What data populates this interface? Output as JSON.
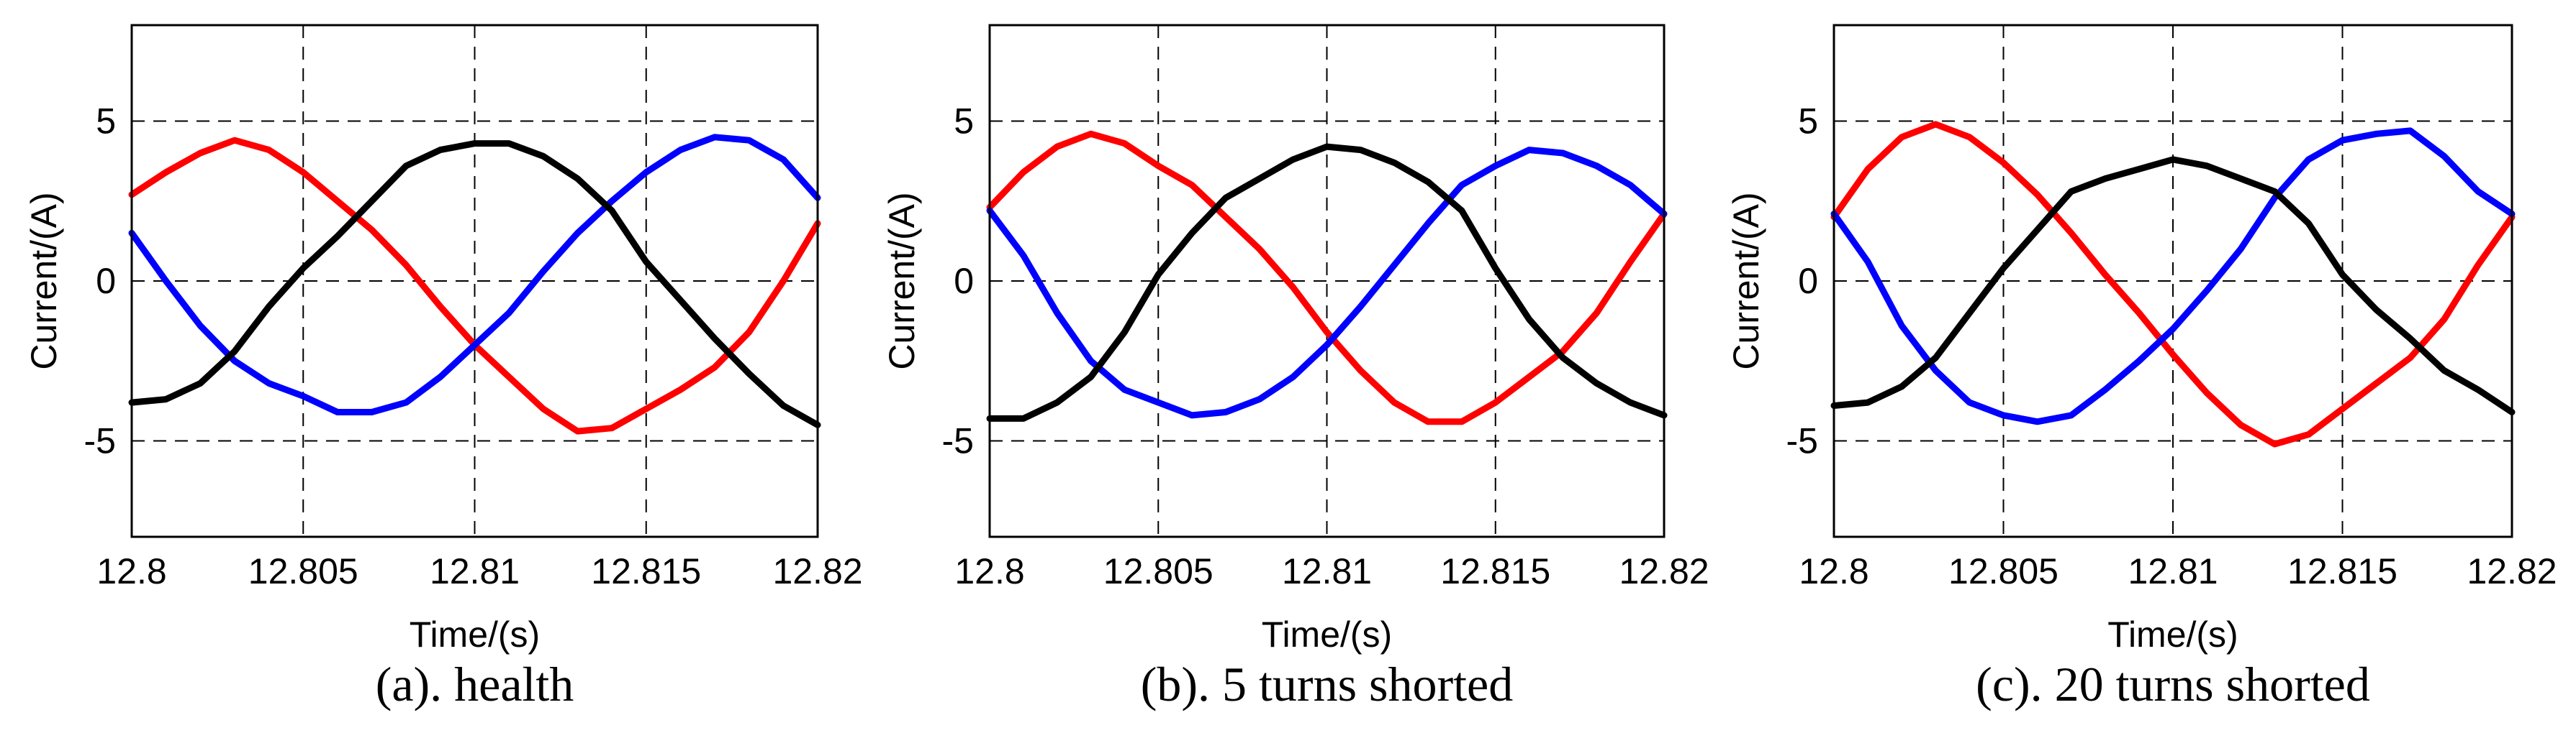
{
  "chart_data": [
    {
      "type": "line",
      "caption": "(a). health",
      "xlabel": "Time/(s)",
      "ylabel": "Current/(A)",
      "xlim": [
        12.8,
        12.82
      ],
      "ylim": [
        -8,
        8
      ],
      "xticks": [
        12.8,
        12.805,
        12.81,
        12.815,
        12.82
      ],
      "xtick_labels": [
        "12.8",
        "12.805",
        "12.81",
        "12.815",
        "12.82"
      ],
      "yticks": [
        -5,
        0,
        5
      ],
      "ytick_labels": [
        "-5",
        "0",
        "5"
      ],
      "grid": true,
      "series": [
        {
          "color": "#ff0000",
          "points": [
            [
              12.8,
              2.7
            ],
            [
              12.801,
              3.4
            ],
            [
              12.802,
              4.0
            ],
            [
              12.803,
              4.4
            ],
            [
              12.804,
              4.1
            ],
            [
              12.805,
              3.4
            ],
            [
              12.806,
              2.5
            ],
            [
              12.807,
              1.6
            ],
            [
              12.808,
              0.5
            ],
            [
              12.809,
              -0.8
            ],
            [
              12.81,
              -2.0
            ],
            [
              12.811,
              -3.0
            ],
            [
              12.812,
              -4.0
            ],
            [
              12.813,
              -4.7
            ],
            [
              12.814,
              -4.6
            ],
            [
              12.815,
              -4.0
            ],
            [
              12.816,
              -3.4
            ],
            [
              12.817,
              -2.7
            ],
            [
              12.818,
              -1.6
            ],
            [
              12.819,
              0.0
            ],
            [
              12.82,
              1.8
            ]
          ]
        },
        {
          "color": "#0000ff",
          "points": [
            [
              12.8,
              1.5
            ],
            [
              12.801,
              0.0
            ],
            [
              12.802,
              -1.4
            ],
            [
              12.803,
              -2.5
            ],
            [
              12.804,
              -3.2
            ],
            [
              12.805,
              -3.6
            ],
            [
              12.806,
              -4.1
            ],
            [
              12.807,
              -4.1
            ],
            [
              12.808,
              -3.8
            ],
            [
              12.809,
              -3.0
            ],
            [
              12.81,
              -2.0
            ],
            [
              12.811,
              -1.0
            ],
            [
              12.812,
              0.3
            ],
            [
              12.813,
              1.5
            ],
            [
              12.814,
              2.5
            ],
            [
              12.815,
              3.4
            ],
            [
              12.816,
              4.1
            ],
            [
              12.817,
              4.5
            ],
            [
              12.818,
              4.4
            ],
            [
              12.819,
              3.8
            ],
            [
              12.82,
              2.6
            ]
          ]
        },
        {
          "color": "#000000",
          "points": [
            [
              12.8,
              -3.8
            ],
            [
              12.801,
              -3.7
            ],
            [
              12.802,
              -3.2
            ],
            [
              12.803,
              -2.2
            ],
            [
              12.804,
              -0.8
            ],
            [
              12.805,
              0.4
            ],
            [
              12.806,
              1.4
            ],
            [
              12.807,
              2.5
            ],
            [
              12.808,
              3.6
            ],
            [
              12.809,
              4.1
            ],
            [
              12.81,
              4.3
            ],
            [
              12.811,
              4.3
            ],
            [
              12.812,
              3.9
            ],
            [
              12.813,
              3.2
            ],
            [
              12.814,
              2.2
            ],
            [
              12.815,
              0.6
            ],
            [
              12.816,
              -0.6
            ],
            [
              12.817,
              -1.8
            ],
            [
              12.818,
              -2.9
            ],
            [
              12.819,
              -3.9
            ],
            [
              12.82,
              -4.5
            ]
          ]
        }
      ]
    },
    {
      "type": "line",
      "caption": "(b). 5 turns shorted",
      "xlabel": "Time/(s)",
      "ylabel": "Current/(A)",
      "xlim": [
        12.8,
        12.82
      ],
      "ylim": [
        -8,
        8
      ],
      "xticks": [
        12.8,
        12.805,
        12.81,
        12.815,
        12.82
      ],
      "xtick_labels": [
        "12.8",
        "12.805",
        "12.81",
        "12.815",
        "12.82"
      ],
      "yticks": [
        -5,
        0,
        5
      ],
      "ytick_labels": [
        "-5",
        "0",
        "5"
      ],
      "grid": true,
      "series": [
        {
          "color": "#ff0000",
          "points": [
            [
              12.8,
              2.3
            ],
            [
              12.801,
              3.4
            ],
            [
              12.802,
              4.2
            ],
            [
              12.803,
              4.6
            ],
            [
              12.804,
              4.3
            ],
            [
              12.805,
              3.6
            ],
            [
              12.806,
              3.0
            ],
            [
              12.807,
              2.0
            ],
            [
              12.808,
              1.0
            ],
            [
              12.809,
              -0.2
            ],
            [
              12.81,
              -1.6
            ],
            [
              12.811,
              -2.8
            ],
            [
              12.812,
              -3.8
            ],
            [
              12.813,
              -4.4
            ],
            [
              12.814,
              -4.4
            ],
            [
              12.815,
              -3.8
            ],
            [
              12.816,
              -3.0
            ],
            [
              12.817,
              -2.2
            ],
            [
              12.818,
              -1.0
            ],
            [
              12.819,
              0.6
            ],
            [
              12.82,
              2.1
            ]
          ]
        },
        {
          "color": "#0000ff",
          "points": [
            [
              12.8,
              2.2
            ],
            [
              12.801,
              0.8
            ],
            [
              12.802,
              -1.0
            ],
            [
              12.803,
              -2.5
            ],
            [
              12.804,
              -3.4
            ],
            [
              12.805,
              -3.8
            ],
            [
              12.806,
              -4.2
            ],
            [
              12.807,
              -4.1
            ],
            [
              12.808,
              -3.7
            ],
            [
              12.809,
              -3.0
            ],
            [
              12.81,
              -2.0
            ],
            [
              12.811,
              -0.8
            ],
            [
              12.812,
              0.5
            ],
            [
              12.813,
              1.8
            ],
            [
              12.814,
              3.0
            ],
            [
              12.815,
              3.6
            ],
            [
              12.816,
              4.1
            ],
            [
              12.817,
              4.0
            ],
            [
              12.818,
              3.6
            ],
            [
              12.819,
              3.0
            ],
            [
              12.82,
              2.1
            ]
          ]
        },
        {
          "color": "#000000",
          "points": [
            [
              12.8,
              -4.3
            ],
            [
              12.801,
              -4.3
            ],
            [
              12.802,
              -3.8
            ],
            [
              12.803,
              -3.0
            ],
            [
              12.804,
              -1.6
            ],
            [
              12.805,
              0.2
            ],
            [
              12.806,
              1.5
            ],
            [
              12.807,
              2.6
            ],
            [
              12.808,
              3.2
            ],
            [
              12.809,
              3.8
            ],
            [
              12.81,
              4.2
            ],
            [
              12.811,
              4.1
            ],
            [
              12.812,
              3.7
            ],
            [
              12.813,
              3.1
            ],
            [
              12.814,
              2.2
            ],
            [
              12.815,
              0.4
            ],
            [
              12.816,
              -1.2
            ],
            [
              12.817,
              -2.4
            ],
            [
              12.818,
              -3.2
            ],
            [
              12.819,
              -3.8
            ],
            [
              12.82,
              -4.2
            ]
          ]
        }
      ]
    },
    {
      "type": "line",
      "caption": "(c). 20 turns shorted",
      "xlabel": "Time/(s)",
      "ylabel": "Current/(A)",
      "xlim": [
        12.8,
        12.82
      ],
      "ylim": [
        -8,
        8
      ],
      "xticks": [
        12.8,
        12.805,
        12.81,
        12.815,
        12.82
      ],
      "xtick_labels": [
        "12.8",
        "12.805",
        "12.81",
        "12.815",
        "12.82"
      ],
      "yticks": [
        -5,
        0,
        5
      ],
      "ytick_labels": [
        "-5",
        "0",
        "5"
      ],
      "grid": true,
      "series": [
        {
          "color": "#ff0000",
          "points": [
            [
              12.8,
              2.0
            ],
            [
              12.801,
              3.5
            ],
            [
              12.802,
              4.5
            ],
            [
              12.803,
              4.9
            ],
            [
              12.804,
              4.5
            ],
            [
              12.805,
              3.7
            ],
            [
              12.806,
              2.7
            ],
            [
              12.807,
              1.5
            ],
            [
              12.808,
              0.2
            ],
            [
              12.809,
              -1.0
            ],
            [
              12.81,
              -2.3
            ],
            [
              12.811,
              -3.5
            ],
            [
              12.812,
              -4.5
            ],
            [
              12.813,
              -5.1
            ],
            [
              12.814,
              -4.8
            ],
            [
              12.815,
              -4.0
            ],
            [
              12.816,
              -3.2
            ],
            [
              12.817,
              -2.4
            ],
            [
              12.818,
              -1.2
            ],
            [
              12.819,
              0.5
            ],
            [
              12.82,
              2.0
            ]
          ]
        },
        {
          "color": "#0000ff",
          "points": [
            [
              12.8,
              2.1
            ],
            [
              12.801,
              0.6
            ],
            [
              12.802,
              -1.4
            ],
            [
              12.803,
              -2.8
            ],
            [
              12.804,
              -3.8
            ],
            [
              12.805,
              -4.2
            ],
            [
              12.806,
              -4.4
            ],
            [
              12.807,
              -4.2
            ],
            [
              12.808,
              -3.4
            ],
            [
              12.809,
              -2.5
            ],
            [
              12.81,
              -1.5
            ],
            [
              12.811,
              -0.3
            ],
            [
              12.812,
              1.0
            ],
            [
              12.813,
              2.6
            ],
            [
              12.814,
              3.8
            ],
            [
              12.815,
              4.4
            ],
            [
              12.816,
              4.6
            ],
            [
              12.817,
              4.7
            ],
            [
              12.818,
              3.9
            ],
            [
              12.819,
              2.8
            ],
            [
              12.82,
              2.1
            ]
          ]
        },
        {
          "color": "#000000",
          "points": [
            [
              12.8,
              -3.9
            ],
            [
              12.801,
              -3.8
            ],
            [
              12.802,
              -3.3
            ],
            [
              12.803,
              -2.4
            ],
            [
              12.804,
              -1.0
            ],
            [
              12.805,
              0.4
            ],
            [
              12.806,
              1.6
            ],
            [
              12.807,
              2.8
            ],
            [
              12.808,
              3.2
            ],
            [
              12.809,
              3.5
            ],
            [
              12.81,
              3.8
            ],
            [
              12.811,
              3.6
            ],
            [
              12.812,
              3.2
            ],
            [
              12.813,
              2.8
            ],
            [
              12.814,
              1.8
            ],
            [
              12.815,
              0.2
            ],
            [
              12.816,
              -0.9
            ],
            [
              12.817,
              -1.8
            ],
            [
              12.818,
              -2.8
            ],
            [
              12.819,
              -3.4
            ],
            [
              12.82,
              -4.1
            ]
          ]
        }
      ]
    }
  ]
}
